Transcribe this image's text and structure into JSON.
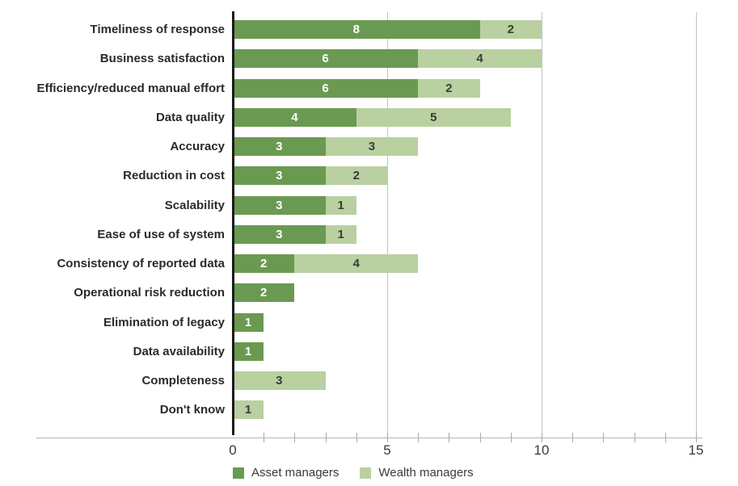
{
  "chart_data": {
    "type": "bar",
    "orientation": "horizontal",
    "stacked": true,
    "title": "",
    "xlabel": "",
    "ylabel": "",
    "xlim": [
      0,
      15
    ],
    "x_major_ticks": [
      0,
      5,
      10,
      15
    ],
    "x_minor_tick_step": 1,
    "grid": "vertical-major",
    "legend_position": "bottom",
    "categories": [
      "Timeliness of response",
      "Business satisfaction",
      "Efficiency/reduced manual effort",
      "Data quality",
      "Accuracy",
      "Reduction in cost",
      "Scalability",
      "Ease of use of system",
      "Consistency of reported data",
      "Operational risk reduction",
      "Elimination of legacy",
      "Data availability",
      "Completeness",
      "Don't know"
    ],
    "series": [
      {
        "name": "Asset managers",
        "color": "#6a9a51",
        "label_color": "#ffffff",
        "values": [
          8,
          6,
          6,
          4,
          3,
          3,
          3,
          3,
          2,
          2,
          1,
          1,
          0,
          0
        ]
      },
      {
        "name": "Wealth managers",
        "color": "#b9d0a1",
        "label_color": "#3a3a38",
        "values": [
          2,
          4,
          2,
          5,
          3,
          2,
          1,
          1,
          4,
          0,
          0,
          0,
          3,
          1
        ]
      }
    ]
  },
  "axis": {
    "tick_labels": [
      "0",
      "5",
      "10",
      "15"
    ]
  },
  "legend": {
    "items": [
      {
        "label": "Asset managers",
        "color": "#6a9a51"
      },
      {
        "label": "Wealth managers",
        "color": "#b9d0a1"
      }
    ]
  },
  "colors": {
    "background": "#ffffff",
    "gridline": "#c3c3c3",
    "axis_line": "#b5b5b5",
    "zero_line": "#1c1c1c",
    "category_text": "#2d2a26",
    "tick_text": "#3a3a38"
  }
}
